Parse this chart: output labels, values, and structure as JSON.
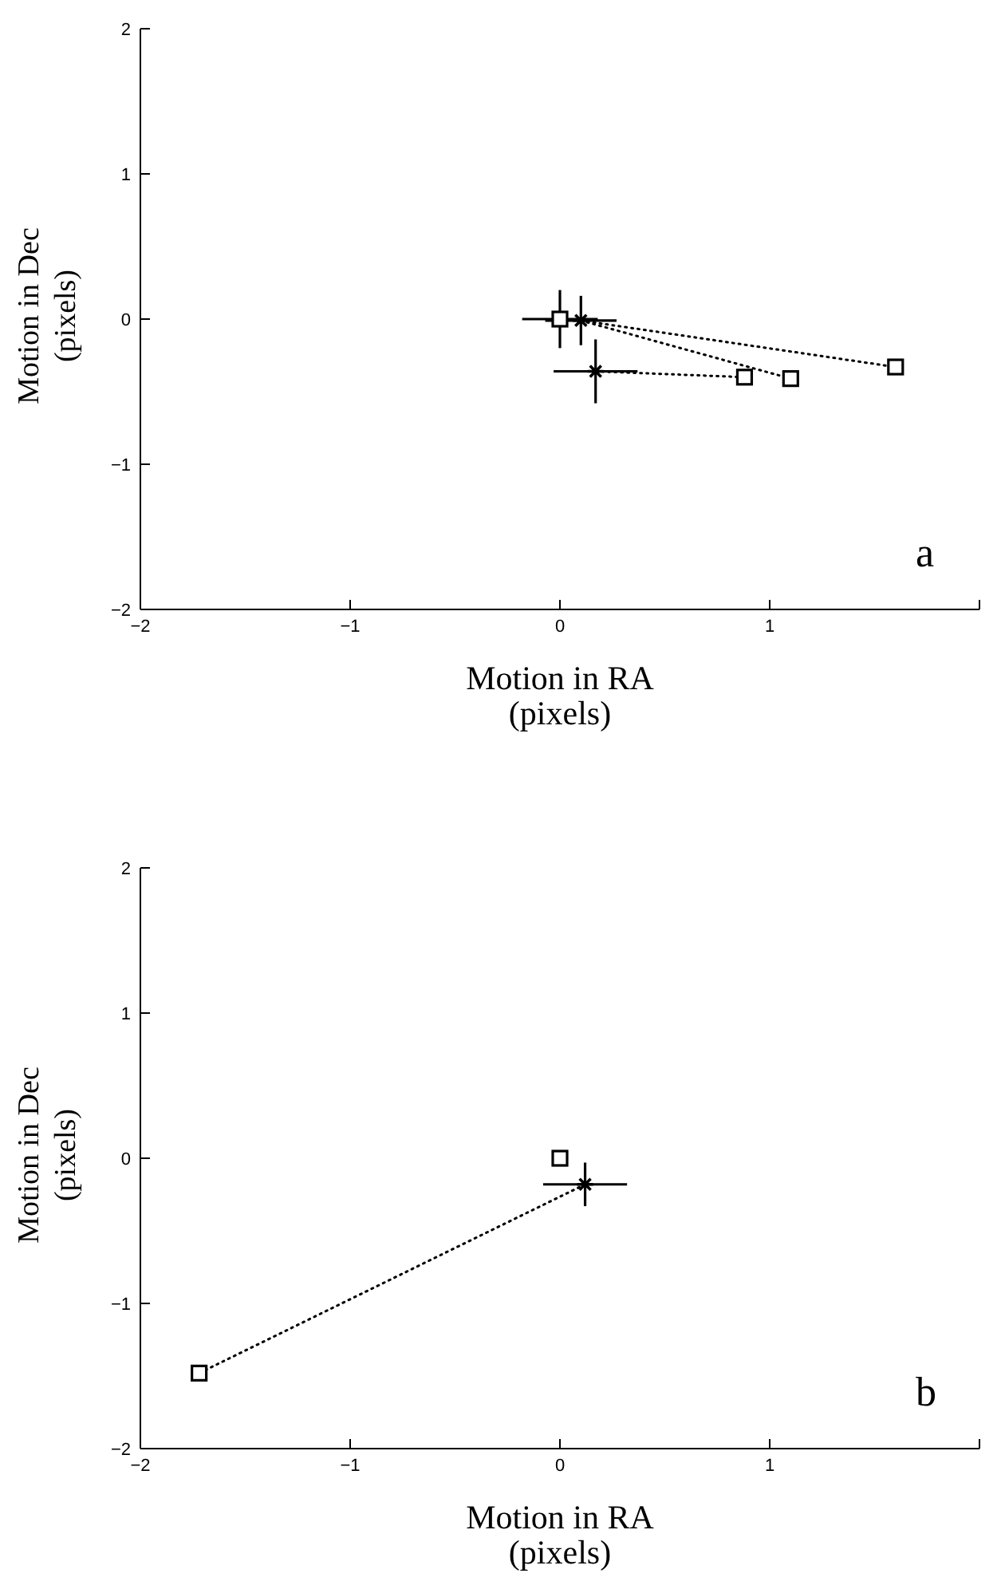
{
  "chart_data": [
    {
      "type": "scatter",
      "xlabel": "Motion in RA (pixels)",
      "ylabel": "Motion in Dec (pixels)",
      "xlim": [
        -2,
        2
      ],
      "xticks": [
        -2,
        -1,
        0,
        1,
        {
          "value": 2,
          "label": null
        }
      ],
      "ylim": [
        -2,
        2
      ],
      "yticks": [
        -2,
        -1,
        0,
        1,
        2
      ],
      "annotations": [
        "a"
      ],
      "series": [
        {
          "type": "line",
          "color": "#000000",
          "line_style": "dotted",
          "x": [
            0.1,
            1.6
          ],
          "values": [
            -0.01,
            -0.33
          ]
        },
        {
          "type": "line",
          "color": "#000000",
          "line_style": "dotted",
          "x": [
            0.1,
            1.1
          ],
          "values": [
            -0.01,
            -0.41
          ]
        },
        {
          "type": "line",
          "color": "#000000",
          "line_style": "dotted",
          "x": [
            0.17,
            0.88
          ],
          "values": [
            -0.36,
            -0.4
          ]
        },
        {
          "type": "scatter",
          "color": "#000000",
          "marker": "square",
          "x": [
            0
          ],
          "values": [
            0
          ],
          "errors": [
            0.2
          ],
          "xerrors": [
            0.18
          ]
        },
        {
          "type": "scatter",
          "color": "#000000",
          "marker": "cross",
          "x": [
            0.1,
            0.17
          ],
          "values": [
            -0.01,
            -0.36
          ],
          "errors": [
            0.17,
            0.22
          ],
          "xerrors": [
            0.17,
            0.2
          ]
        },
        {
          "type": "scatter",
          "color": "#000000",
          "marker": "square",
          "x": [
            0.88,
            1.1,
            1.6
          ],
          "values": [
            -0.4,
            -0.41,
            -0.33
          ]
        }
      ]
    },
    {
      "type": "scatter",
      "xlabel": "Motion in RA (pixels)",
      "ylabel": "Motion in Dec (pixels)",
      "xlim": [
        -2,
        2
      ],
      "xticks": [
        -2,
        -1,
        0,
        1,
        {
          "value": 2,
          "label": null
        }
      ],
      "ylim": [
        -2,
        2
      ],
      "yticks": [
        -2,
        -1,
        0,
        1,
        2
      ],
      "annotations": [
        "b"
      ],
      "series": [
        {
          "type": "line",
          "color": "#000000",
          "line_style": "dotted",
          "x": [
            0.12,
            -1.72
          ],
          "values": [
            -0.18,
            -1.48
          ]
        },
        {
          "type": "scatter",
          "color": "#000000",
          "marker": "square",
          "x": [
            0
          ],
          "values": [
            0
          ]
        },
        {
          "type": "scatter",
          "color": "#000000",
          "marker": "cross",
          "x": [
            0.12
          ],
          "values": [
            -0.18
          ],
          "errors": [
            0.15
          ],
          "xerrors": [
            0.2
          ]
        },
        {
          "type": "scatter",
          "color": "#000000",
          "marker": "square",
          "x": [
            -1.72
          ],
          "values": [
            -1.48
          ]
        }
      ]
    }
  ]
}
